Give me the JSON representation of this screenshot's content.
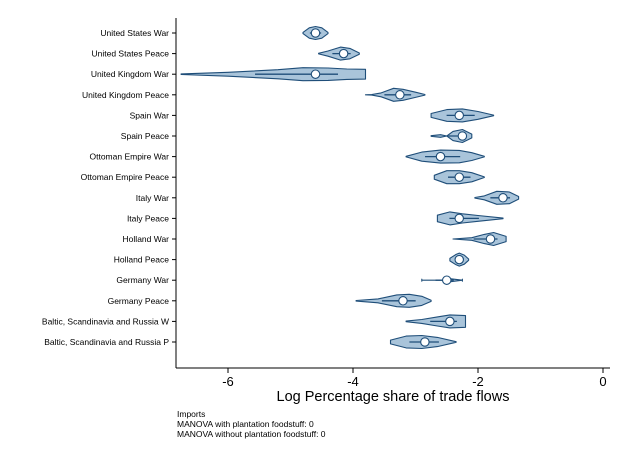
{
  "chart_data": {
    "type": "violin",
    "title": "",
    "xlabel": "Log Percentage share of trade flows",
    "ylabel": "",
    "xlim": [
      -6.8,
      0.1
    ],
    "xticks": [
      -6,
      -4,
      -2,
      0
    ],
    "xtick_labels": [
      "-6",
      "-4",
      "-2",
      "0"
    ],
    "grid": false,
    "fill_color": "#a9c4da",
    "stroke_color": "#1f4e79",
    "categories": [
      "United States War",
      "United States Peace",
      "United Kingdom War",
      "United Kingdom Peace",
      "Spain War",
      "Spain Peace",
      "Ottoman Empire War",
      "Ottoman Empire Peace",
      "Italy War",
      "Italy Peace",
      "Holland War",
      "Holland Peace",
      "Germany War",
      "Germany Peace",
      "Baltic, Scandinavia and Russia W",
      "Baltic, Scandinavia and Russia P"
    ],
    "medians": [
      -4.6,
      -4.15,
      -4.6,
      -3.25,
      -2.3,
      -2.25,
      -2.6,
      -2.3,
      -1.6,
      -2.3,
      -1.8,
      -2.3,
      -2.5,
      -3.2,
      -2.45,
      -2.85
    ],
    "violins": [
      {
        "x": [
          -4.8,
          -4.7,
          -4.6,
          -4.5,
          -4.4
        ],
        "w": [
          0.1,
          0.8,
          1.0,
          0.8,
          0.1
        ]
      },
      {
        "x": [
          -4.55,
          -4.4,
          -4.2,
          -4.05,
          -3.9
        ],
        "w": [
          0.05,
          0.4,
          1.0,
          0.8,
          0.1
        ]
      },
      {
        "x": [
          -6.75,
          -6.0,
          -5.2,
          -4.8,
          -4.4,
          -4.1,
          -3.8
        ],
        "w": [
          0.05,
          0.3,
          0.7,
          1.0,
          0.95,
          0.8,
          0.75
        ]
      },
      {
        "x": [
          -3.8,
          -3.7,
          -3.55,
          -3.35,
          -3.2,
          -3.0,
          -2.85
        ],
        "w": [
          0.0,
          0.05,
          0.3,
          1.0,
          0.85,
          0.4,
          0.05
        ]
      },
      {
        "x": [
          -2.75,
          -2.5,
          -2.25,
          -2.0,
          -1.75
        ],
        "w": [
          0.3,
          0.9,
          1.0,
          0.6,
          0.05
        ]
      },
      {
        "x": [
          -2.75,
          -2.6,
          -2.5,
          -2.4,
          -2.25,
          -2.1
        ],
        "w": [
          0.05,
          0.2,
          0.0,
          0.7,
          1.0,
          0.3
        ]
      },
      {
        "x": [
          -3.15,
          -2.9,
          -2.6,
          -2.3,
          -2.1,
          -1.9
        ],
        "w": [
          0.05,
          0.7,
          1.0,
          0.95,
          0.6,
          0.05
        ]
      },
      {
        "x": [
          -2.7,
          -2.5,
          -2.3,
          -2.1,
          -1.9
        ],
        "w": [
          0.3,
          1.0,
          1.0,
          0.7,
          0.05
        ]
      },
      {
        "x": [
          -2.05,
          -1.9,
          -1.7,
          -1.5,
          -1.35
        ],
        "w": [
          0.05,
          0.3,
          1.0,
          0.9,
          0.2
        ]
      },
      {
        "x": [
          -2.65,
          -2.45,
          -2.25,
          -2.0,
          -1.6
        ],
        "w": [
          0.5,
          1.0,
          0.7,
          0.45,
          0.05
        ]
      },
      {
        "x": [
          -2.4,
          -2.1,
          -1.9,
          -1.75,
          -1.55
        ],
        "w": [
          0.0,
          0.2,
          0.7,
          1.0,
          0.4
        ]
      },
      {
        "x": [
          -2.45,
          -2.35,
          -2.3,
          -2.22,
          -2.15
        ],
        "w": [
          0.2,
          0.8,
          1.0,
          0.7,
          0.1
        ]
      },
      {
        "x": [
          -2.9,
          -2.9,
          -2.5,
          -2.5,
          -2.25,
          -2.25
        ],
        "w": [
          0.15,
          0.0,
          0.0,
          0.3,
          0.0,
          0.15
        ]
      },
      {
        "x": [
          -3.95,
          -3.6,
          -3.3,
          -3.1,
          -2.9,
          -2.75
        ],
        "w": [
          0.05,
          0.3,
          0.9,
          1.0,
          0.7,
          0.1
        ]
      },
      {
        "x": [
          -3.15,
          -2.9,
          -2.65,
          -2.45,
          -2.2
        ],
        "w": [
          0.05,
          0.3,
          0.7,
          1.0,
          0.9
        ]
      },
      {
        "x": [
          -3.4,
          -3.15,
          -2.9,
          -2.65,
          -2.35
        ],
        "w": [
          0.3,
          0.9,
          1.0,
          0.7,
          0.05
        ]
      }
    ]
  },
  "notes": {
    "line1": "Imports",
    "line2": "MANOVA with plantation foodstuff: 0",
    "line3": "MANOVA without plantation foodstuff: 0"
  }
}
